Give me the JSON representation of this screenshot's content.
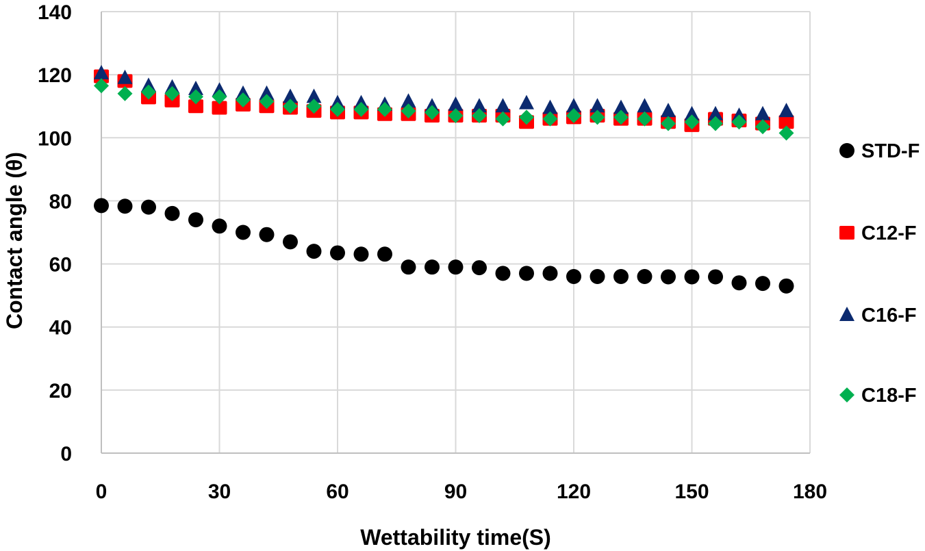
{
  "chart_data": {
    "type": "scatter",
    "title": "",
    "xlabel": "Wettability time(S)",
    "ylabel": "Contact angle (θ)",
    "xlim": [
      0,
      180
    ],
    "ylim": [
      0,
      140
    ],
    "xticks": [
      0,
      30,
      60,
      90,
      120,
      150,
      180
    ],
    "yticks": [
      0,
      20,
      40,
      60,
      80,
      100,
      120,
      140
    ],
    "grid": true,
    "legend_position": "right",
    "x": [
      0,
      6,
      12,
      18,
      24,
      30,
      36,
      42,
      48,
      54,
      60,
      66,
      72,
      78,
      84,
      90,
      96,
      102,
      108,
      114,
      120,
      126,
      132,
      138,
      144,
      150,
      156,
      162,
      168,
      174
    ],
    "series": [
      {
        "name": "STD-F",
        "marker": "circle",
        "color": "#000000",
        "values": [
          78.5,
          78.3,
          78.0,
          76.0,
          74.0,
          72.0,
          70.0,
          69.3,
          67.0,
          64.0,
          63.5,
          63.1,
          63.1,
          59.0,
          59.0,
          59.0,
          58.8,
          57.0,
          57.0,
          57.0,
          56.0,
          56.0,
          56.0,
          56.0,
          55.9,
          55.9,
          55.9,
          54.0,
          53.8,
          53.0
        ]
      },
      {
        "name": "C12-F",
        "marker": "square",
        "color": "#ff0000",
        "values": [
          119.5,
          118.0,
          112.8,
          111.8,
          110.0,
          109.5,
          110.5,
          110.0,
          109.5,
          108.5,
          108.0,
          108.0,
          107.5,
          107.5,
          107.0,
          107.0,
          107.0,
          107.0,
          105.0,
          106.0,
          106.5,
          107.0,
          106.0,
          106.0,
          105.0,
          104.0,
          106.0,
          105.5,
          104.5,
          105.0
        ]
      },
      {
        "name": "C16-F",
        "marker": "triangle",
        "color": "#0b2a6f",
        "values": [
          120.5,
          119.0,
          116.5,
          116.0,
          115.5,
          115.0,
          114.0,
          114.0,
          113.0,
          113.0,
          111.0,
          111.0,
          110.5,
          111.5,
          110.0,
          110.5,
          110.0,
          110.0,
          111.0,
          109.5,
          110.0,
          110.0,
          109.5,
          110.0,
          108.5,
          107.5,
          107.5,
          107.0,
          107.5,
          108.5
        ]
      },
      {
        "name": "C18-F",
        "marker": "diamond",
        "color": "#00b050",
        "values": [
          116.5,
          114.0,
          114.5,
          114.0,
          113.0,
          113.0,
          112.0,
          111.5,
          110.0,
          110.0,
          109.0,
          109.0,
          109.0,
          108.5,
          108.0,
          107.0,
          107.0,
          106.0,
          106.5,
          106.0,
          107.0,
          106.5,
          106.5,
          106.0,
          104.5,
          105.0,
          104.5,
          105.0,
          103.5,
          101.5
        ]
      }
    ]
  }
}
